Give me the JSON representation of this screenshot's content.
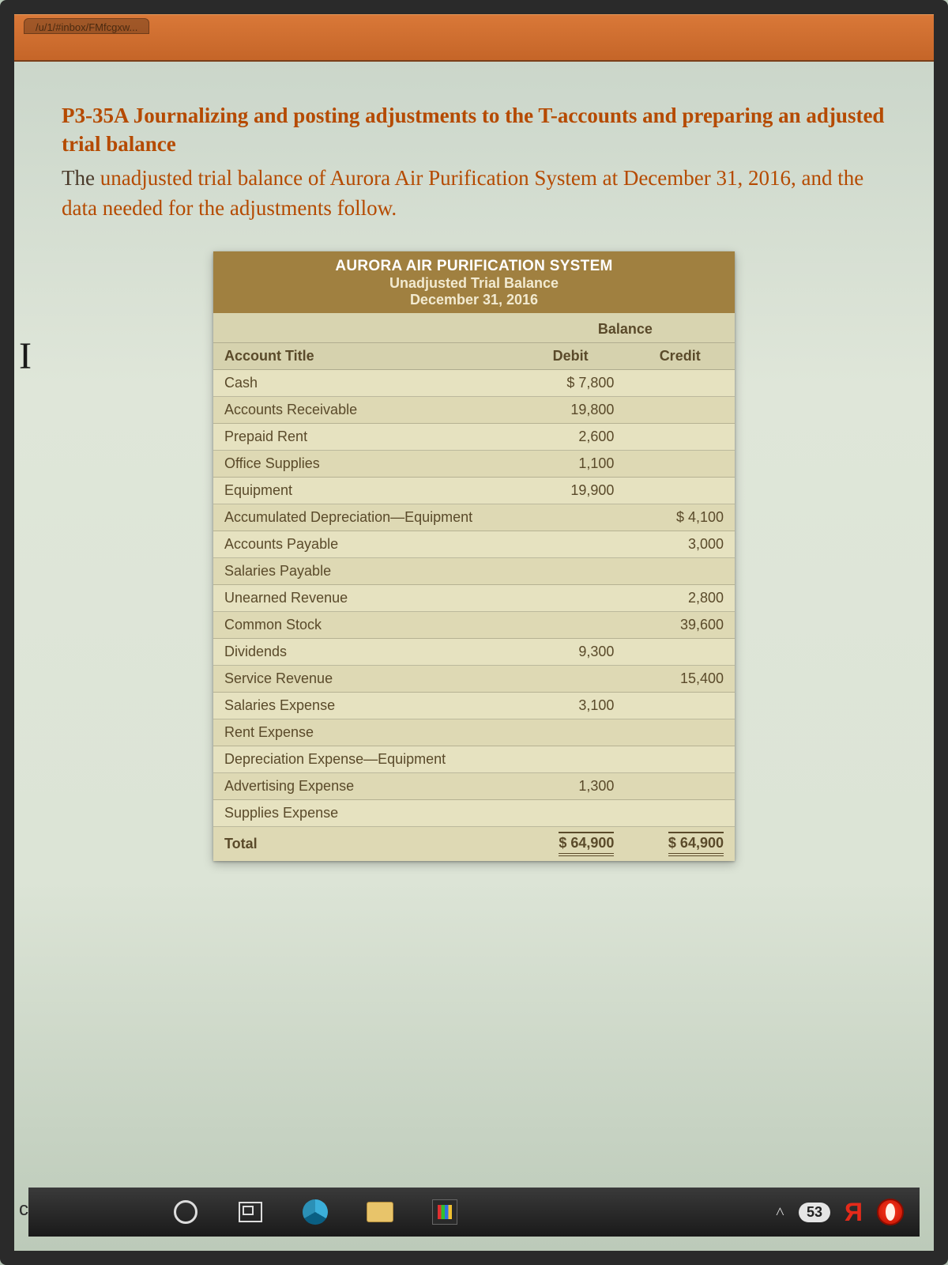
{
  "browser": {
    "tab1": "/u/1/#inbox/FMfcgxw...",
    "tab_bg": "#d97838"
  },
  "problem": {
    "id": "P3-35A",
    "title": "Journalizing and posting adjustments to the T-accounts and preparing an adjusted trial balance",
    "body_pre": "The ",
    "body_orange": "unadjusted trial balance of Aurora Air Purification System at December 31, 2016, and the data needed for the adjustments follow.",
    "text_color": "#b54a00"
  },
  "table": {
    "company": "AURORA AIR PURIFICATION SYSTEM",
    "subtitle": "Unadjusted Trial Balance",
    "date": "December 31, 2016",
    "header_bg": "#a08040",
    "row_bg_a": "#e6e2c0",
    "row_bg_b": "#ded9b4",
    "balance_label": "Balance",
    "columns": {
      "acct": "Account Title",
      "debit": "Debit",
      "credit": "Credit"
    },
    "rows": [
      {
        "acct": "Cash",
        "debit": "$  7,800",
        "credit": ""
      },
      {
        "acct": "Accounts Receivable",
        "debit": "19,800",
        "credit": ""
      },
      {
        "acct": "Prepaid Rent",
        "debit": "2,600",
        "credit": ""
      },
      {
        "acct": "Office Supplies",
        "debit": "1,100",
        "credit": ""
      },
      {
        "acct": "Equipment",
        "debit": "19,900",
        "credit": ""
      },
      {
        "acct": "Accumulated Depreciation—Equipment",
        "debit": "",
        "credit": "$  4,100"
      },
      {
        "acct": "Accounts Payable",
        "debit": "",
        "credit": "3,000"
      },
      {
        "acct": "Salaries Payable",
        "debit": "",
        "credit": ""
      },
      {
        "acct": "Unearned Revenue",
        "debit": "",
        "credit": "2,800"
      },
      {
        "acct": "Common Stock",
        "debit": "",
        "credit": "39,600"
      },
      {
        "acct": "Dividends",
        "debit": "9,300",
        "credit": ""
      },
      {
        "acct": "Service Revenue",
        "debit": "",
        "credit": "15,400"
      },
      {
        "acct": "Salaries Expense",
        "debit": "3,100",
        "credit": ""
      },
      {
        "acct": "Rent Expense",
        "debit": "",
        "credit": ""
      },
      {
        "acct": "Depreciation Expense—Equipment",
        "debit": "",
        "credit": ""
      },
      {
        "acct": "Advertising Expense",
        "debit": "1,300",
        "credit": ""
      },
      {
        "acct": "Supplies Expense",
        "debit": "",
        "credit": ""
      }
    ],
    "total": {
      "label": "Total",
      "debit": "$ 64,900",
      "credit": "$ 64,900"
    }
  },
  "side": {
    "left_label": "ска",
    "cursor": "I"
  },
  "taskbar": {
    "tray_count": "53",
    "yandex": "Я"
  }
}
